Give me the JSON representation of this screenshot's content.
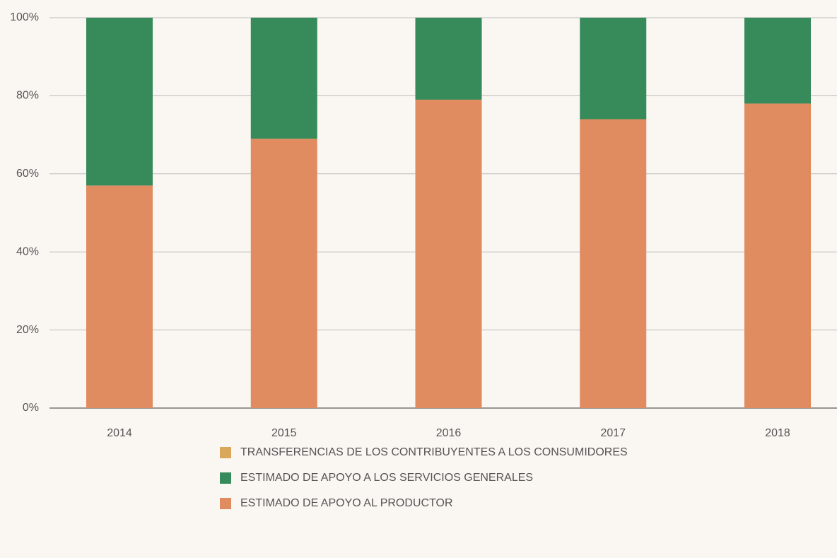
{
  "chart_data": {
    "type": "stacked_bar",
    "categories": [
      "2014",
      "2015",
      "2016",
      "2017",
      "2018"
    ],
    "series": [
      {
        "name": "TRANSFERENCIAS DE LOS CONTRIBUYENTES A LOS CONSUMIDORES",
        "color": "#d9a85a",
        "values": [
          0,
          0,
          0,
          0,
          0
        ]
      },
      {
        "name": "ESTIMADO DE APOYO A LOS SERVICIOS GENERALES",
        "color": "#378a5a",
        "values": [
          43,
          31,
          21,
          26,
          22
        ]
      },
      {
        "name": "ESTIMADO DE APOYO AL PRODUCTOR",
        "color": "#e08c60",
        "values": [
          57,
          69,
          79,
          74,
          78
        ]
      }
    ],
    "ylim": [
      0,
      100
    ],
    "yticks": [
      {
        "value": 0,
        "label": "0%"
      },
      {
        "value": 20,
        "label": "20%"
      },
      {
        "value": 40,
        "label": "40%"
      },
      {
        "value": 60,
        "label": "60%"
      },
      {
        "value": 80,
        "label": "80%"
      },
      {
        "value": 100,
        "label": "100%"
      }
    ],
    "grid": true
  }
}
